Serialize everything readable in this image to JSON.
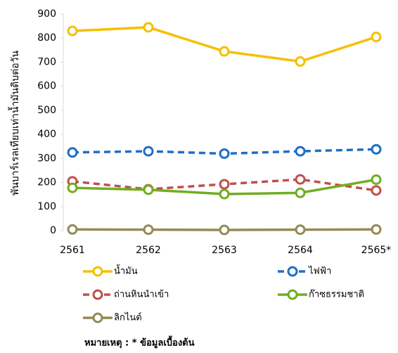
{
  "chart_data": {
    "type": "line",
    "y_label": "พันบาร์เรลเทียบเท่าน้ำมันดิบต่อวัน",
    "categories": [
      "2561",
      "2562",
      "2563",
      "2564",
      "2565*"
    ],
    "series": [
      {
        "name": "น้ำมัน",
        "color": "#f5c000",
        "dashed": false,
        "values": [
          830,
          845,
          745,
          703,
          805
        ]
      },
      {
        "name": "ไฟฟ้า",
        "color": "#1f6fc5",
        "dashed": true,
        "values": [
          325,
          330,
          320,
          330,
          338
        ]
      },
      {
        "name": "ถ่านหินนำเข้า",
        "color": "#c0504d",
        "dashed": true,
        "values": [
          205,
          172,
          193,
          213,
          167
        ]
      },
      {
        "name": "ก๊าซธรรมชาติ",
        "color": "#70ad22",
        "dashed": false,
        "values": [
          178,
          170,
          152,
          157,
          212
        ]
      },
      {
        "name": "ลิกไนต์",
        "color": "#948a54",
        "dashed": false,
        "values": [
          5,
          4,
          3,
          4,
          5
        ]
      }
    ],
    "ylim": [
      0,
      900
    ],
    "yticks": [
      0,
      100,
      200,
      300,
      400,
      500,
      600,
      700,
      800,
      900
    ],
    "grid": false,
    "legend": "bottom",
    "note": "หมายเหตุ : * ข้อมูลเบื้องต้น"
  }
}
